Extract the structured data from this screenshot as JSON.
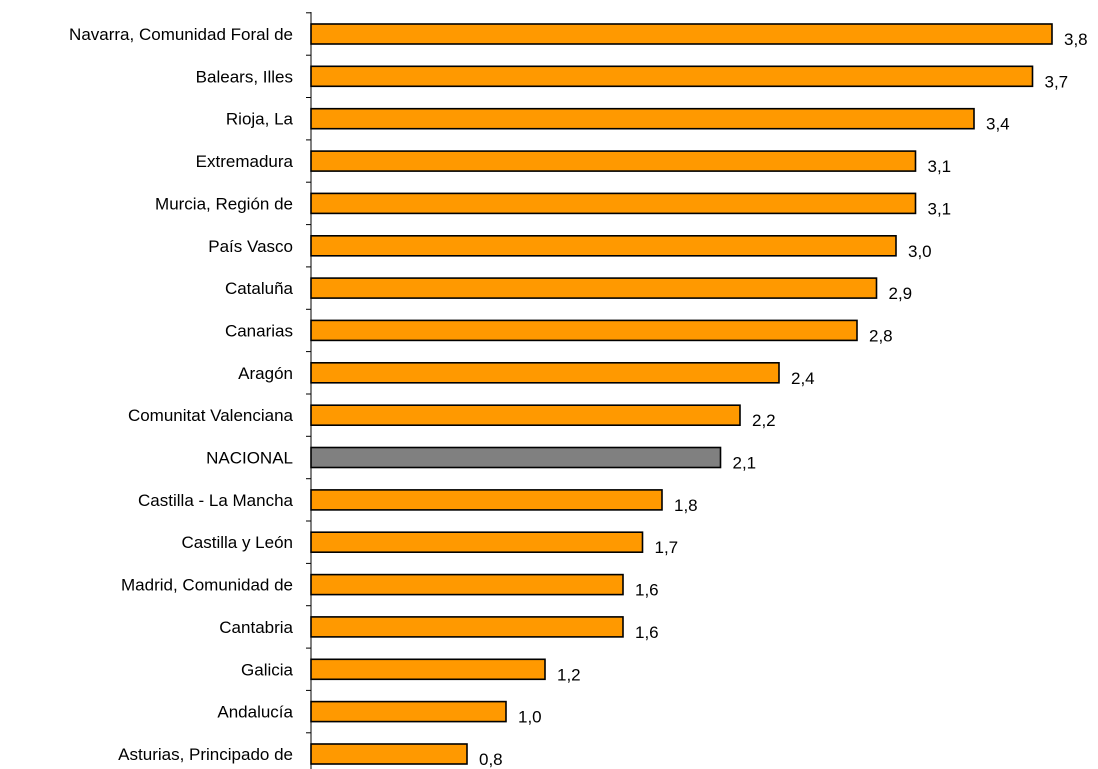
{
  "colors": {
    "bar": "#FF9900",
    "highlight": "#808080",
    "stroke": "#000000",
    "axis": "#000000",
    "text": "#000000"
  },
  "chart_data": {
    "type": "bar",
    "orientation": "horizontal",
    "title": "",
    "xlabel": "",
    "ylabel": "",
    "grid": false,
    "legend": "none",
    "xlim": [
      0,
      3.8
    ],
    "categories": [
      "Navarra, Comunidad Foral de",
      "Balears, Illes",
      "Rioja, La",
      "Extremadura",
      "Murcia, Región de",
      "País Vasco",
      "Cataluña",
      "Canarias",
      "Aragón",
      "Comunitat Valenciana",
      "NACIONAL",
      "Castilla - La Mancha",
      "Castilla y León",
      "Madrid, Comunidad de",
      "Cantabria",
      "Galicia",
      "Andalucía",
      "Asturias, Principado de"
    ],
    "values": [
      3.8,
      3.7,
      3.4,
      3.1,
      3.1,
      3.0,
      2.9,
      2.8,
      2.4,
      2.2,
      2.1,
      1.8,
      1.7,
      1.6,
      1.6,
      1.2,
      1.0,
      0.8
    ],
    "value_labels": [
      "3,8",
      "3,7",
      "3,4",
      "3,1",
      "3,1",
      "3,0",
      "2,9",
      "2,8",
      "2,4",
      "2,2",
      "2,1",
      "1,8",
      "1,7",
      "1,6",
      "1,6",
      "1,2",
      "1,0",
      "0,8"
    ],
    "highlight_category": "NACIONAL"
  }
}
